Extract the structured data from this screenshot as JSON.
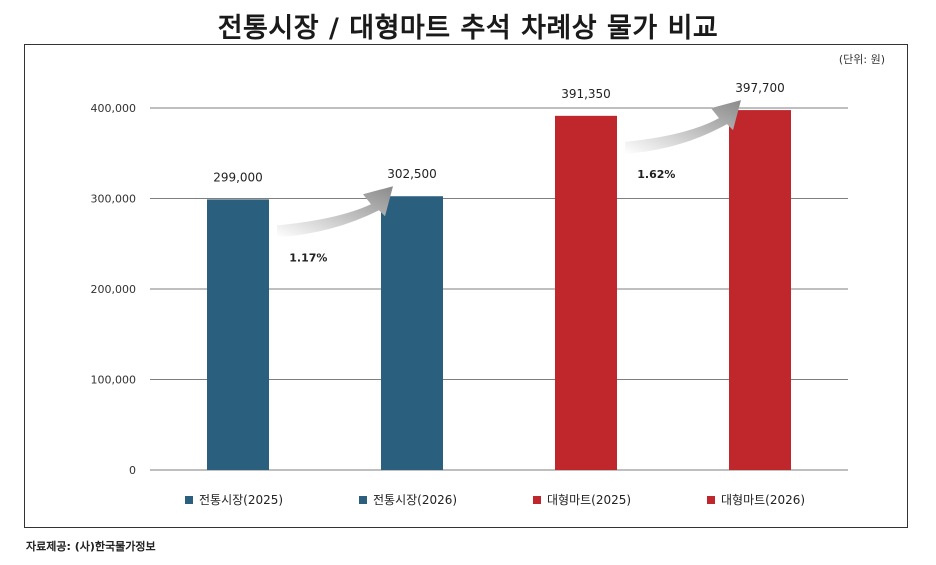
{
  "title": "전통시장 / 대형마트 추석 차례상 물가 비교",
  "unit_note": "(단위: 원)",
  "source": "자료제공: (사)한국물가정보",
  "chart_data": {
    "type": "bar",
    "title": "전통시장 / 대형마트 추석 차례상 물가 비교",
    "categories": [
      "전통시장(2025)",
      "전통시장(2026)",
      "대형마트(2025)",
      "대형마트(2026)"
    ],
    "values": [
      299000,
      302500,
      391350,
      397700
    ],
    "value_labels": [
      "299,000",
      "302,500",
      "391,350",
      "397,700"
    ],
    "colors": [
      "#2a5f7d",
      "#2a5f7d",
      "#c0272d",
      "#c0272d"
    ],
    "ylim": [
      0,
      400000
    ],
    "yticks": [
      0,
      100000,
      200000,
      300000,
      400000
    ],
    "ytick_labels": [
      "0",
      "100,000",
      "200,000",
      "300,000",
      "400,000"
    ],
    "grid": true,
    "legend_position": "bottom",
    "annotations": [
      {
        "text": "1.17%",
        "from": 0,
        "to": 1
      },
      {
        "text": "1.62%",
        "from": 2,
        "to": 3
      }
    ]
  }
}
